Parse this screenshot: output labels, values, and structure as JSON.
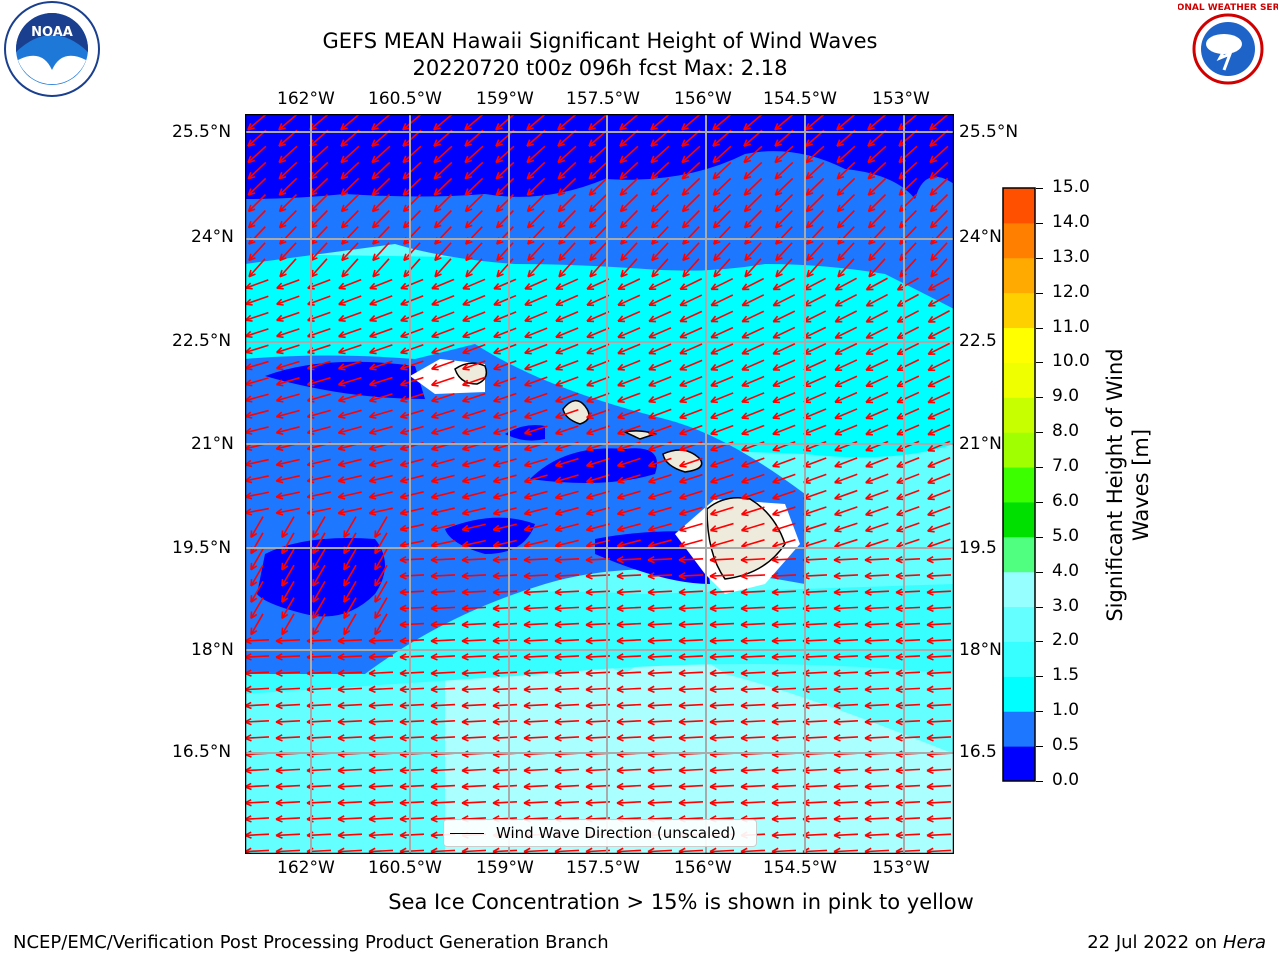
{
  "title": {
    "line1": "GEFS MEAN Hawaii Significant Height of Wind Waves",
    "line2": "20220720 t00z 096h fcst   Max: 2.18"
  },
  "axes": {
    "lon_labels": [
      "162°W",
      "160.5°W",
      "159°W",
      "157.5°W",
      "156°W",
      "154.5°W",
      "153°W"
    ],
    "lat_labels": [
      "25.5°N",
      "24°N",
      "22.5°N",
      "21°N",
      "19.5°N",
      "18°N",
      "16.5°N"
    ],
    "lat_labels_right": [
      "25.5°N",
      "24°N",
      "22.5",
      "21°N",
      "19.5",
      "18°N",
      "16.5"
    ]
  },
  "legend": {
    "label": "Wind Wave Direction (unscaled)"
  },
  "colorbar": {
    "title": "Significant Height of Wind Waves [m]",
    "ticks": [
      "0.0",
      "0.5",
      "1.0",
      "1.5",
      "2.0",
      "3.0",
      "4.0",
      "5.0",
      "6.0",
      "7.0",
      "8.0",
      "9.0",
      "10.0",
      "11.0",
      "12.0",
      "13.0",
      "14.0",
      "15.0"
    ],
    "colors": [
      "#0000ff",
      "#1e78ff",
      "#00ffff",
      "#37ffff",
      "#64ffff",
      "#96ffff",
      "#50ff80",
      "#00e000",
      "#3cff00",
      "#a0ff00",
      "#c8ff00",
      "#f0ff00",
      "#ffff00",
      "#ffd000",
      "#ffaa00",
      "#ff8000",
      "#ff5000",
      "#ff2a00",
      "#ff0000"
    ]
  },
  "field_colors": {
    "dark": "#0000ff",
    "mid": "#1e78ff",
    "cyan": "#00ffff",
    "light": "#64ffff",
    "pale": "#aaffff",
    "land": "#efebdc",
    "arrow": "#ff0000"
  },
  "subtitle": "Sea Ice Concentration > 15% is shown in pink to yellow",
  "footer": {
    "left": "NCEP/EMC/Verification Post Processing Product Generation Branch",
    "right_prefix": "22 Jul 2022 on ",
    "right_host": "Hera"
  },
  "logos": {
    "noaa_text": "NOAA",
    "nws_text": "NATIONAL WEATHER SERVICE"
  }
}
